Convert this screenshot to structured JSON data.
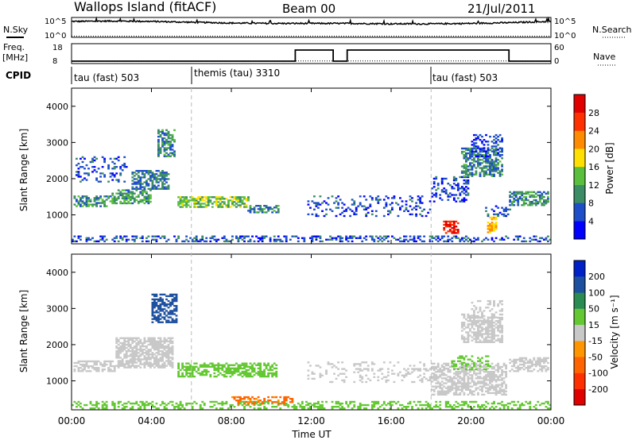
{
  "header": {
    "site": "Wallops Island (fitACF)",
    "beam": "Beam 00",
    "date": "21/Jul/2011"
  },
  "colors": {
    "background": "#ffffff",
    "axis": "#000000",
    "scatter_gray": "#c8c8c8"
  },
  "chart_data": [
    {
      "type": "line",
      "name": "noise-panel",
      "left_label": "N.Sky",
      "right_label": "N.Search",
      "left_ticks": [
        "10^5",
        "10^0"
      ],
      "right_ticks": [
        "10^5",
        "10^0"
      ],
      "ylim_exp": [
        0,
        5
      ],
      "x": [
        0,
        2,
        4,
        6,
        8,
        10,
        12,
        14,
        16,
        18,
        20,
        22,
        24
      ],
      "sky_exp": [
        4.0,
        4.1,
        4.0,
        3.8,
        3.6,
        3.5,
        3.5,
        3.5,
        3.4,
        3.4,
        3.5,
        3.7,
        4.0
      ],
      "search_exp": [
        0.3,
        0.3,
        0.3,
        0.3,
        0.3,
        0.3,
        0.3,
        0.3,
        0.3,
        0.3,
        0.3,
        0.3,
        0.3
      ]
    },
    {
      "type": "line",
      "name": "frequency-panel",
      "left_label": "Freq.",
      "left_unit": "[MHz]",
      "right_label": "Nave",
      "left_ticks": [
        "18",
        "8"
      ],
      "right_ticks": [
        "60",
        "0"
      ],
      "freq_steps": [
        [
          0,
          8
        ],
        [
          11.2,
          8
        ],
        [
          11.2,
          15
        ],
        [
          13.1,
          15
        ],
        [
          13.1,
          8
        ],
        [
          13.8,
          8
        ],
        [
          13.8,
          15
        ],
        [
          21.9,
          15
        ],
        [
          21.9,
          8
        ],
        [
          24,
          8
        ]
      ],
      "nave_level": 8
    },
    {
      "type": "table",
      "name": "cpid-bar",
      "label": "CPID",
      "segments": [
        {
          "label": "tau (fast) 503",
          "start": 0
        },
        {
          "label": "themis (tau) 3310",
          "start": 6
        },
        {
          "label": "tau (fast) 503",
          "start": 18
        }
      ]
    },
    {
      "type": "heatmap",
      "name": "power-panel",
      "ylabel": "Slant Range [km]",
      "yticks": [
        1000,
        2000,
        3000,
        4000
      ],
      "ylim": [
        200,
        4500
      ],
      "xlim": [
        0,
        24
      ],
      "colorbar_label": "Power [dB]",
      "colorbar_ticks": [
        "4",
        "8",
        "12",
        "16",
        "20",
        "24",
        "28"
      ],
      "colorbar_colors": [
        "#0000ff",
        "#1e4fc8",
        "#3c8c64",
        "#5abf3c",
        "#ffe000",
        "#ff8c00",
        "#ff3000",
        "#e00000"
      ],
      "mode": "power",
      "regions": [
        {
          "t0": 0.1,
          "t1": 2.0,
          "r0": 1220,
          "r1": 1500,
          "v": 10
        },
        {
          "t0": 2.0,
          "t1": 4.0,
          "r0": 1300,
          "r1": 1700,
          "v": 11
        },
        {
          "t0": 3.0,
          "t1": 4.8,
          "r0": 1700,
          "r1": 2200,
          "v": 8
        },
        {
          "t0": 4.3,
          "t1": 5.1,
          "r0": 2600,
          "r1": 3350,
          "v": 9
        },
        {
          "t0": 0.2,
          "t1": 2.8,
          "r0": 1900,
          "r1": 2600,
          "v": 5,
          "density": 0.25
        },
        {
          "t0": 5.3,
          "t1": 8.8,
          "r0": 1200,
          "r1": 1500,
          "v": 14
        },
        {
          "t0": 8.8,
          "t1": 10.3,
          "r0": 1050,
          "r1": 1250,
          "v": 9
        },
        {
          "t0": 0.0,
          "t1": 24.0,
          "r0": 250,
          "r1": 400,
          "v": 6,
          "density": 0.35
        },
        {
          "t0": 11.8,
          "t1": 18.0,
          "r0": 950,
          "r1": 1500,
          "v": 5,
          "density": 0.18
        },
        {
          "t0": 18.0,
          "t1": 19.9,
          "r0": 1350,
          "r1": 2050,
          "v": 5,
          "density": 0.3
        },
        {
          "t0": 18.6,
          "t1": 19.4,
          "r0": 480,
          "r1": 800,
          "v": 28
        },
        {
          "t0": 19.5,
          "t1": 21.6,
          "r0": 2050,
          "r1": 2850,
          "v": 9
        },
        {
          "t0": 20.0,
          "t1": 21.6,
          "r0": 2600,
          "r1": 3200,
          "v": 5,
          "density": 0.3
        },
        {
          "t0": 20.8,
          "t1": 21.3,
          "r0": 500,
          "r1": 950,
          "v": 20
        },
        {
          "t0": 21.9,
          "t1": 23.9,
          "r0": 1250,
          "r1": 1650,
          "v": 10
        },
        {
          "t0": 20.5,
          "t1": 22.0,
          "r0": 950,
          "r1": 1250,
          "v": 6,
          "density": 0.3
        }
      ]
    },
    {
      "type": "heatmap",
      "name": "velocity-panel",
      "ylabel": "Slant Range [km]",
      "xlabel": "Time UT",
      "xticks": [
        "00:00",
        "04:00",
        "08:00",
        "12:00",
        "16:00",
        "20:00",
        "00:00"
      ],
      "xtick_hours": [
        0,
        4,
        8,
        12,
        16,
        20,
        24
      ],
      "yticks": [
        1000,
        2000,
        3000,
        4000
      ],
      "ylim": [
        200,
        4500
      ],
      "xlim": [
        0,
        24
      ],
      "colorbar_label": "Velocity [m s⁻¹]",
      "colorbar_ticks": [
        "200",
        "100",
        "50",
        "15",
        "-15",
        "-50",
        "-100",
        "-200"
      ],
      "colorbar_colors": [
        "#0020c8",
        "#1e50a0",
        "#2a8c50",
        "#64c832",
        "#c8c8c8",
        "#ff9600",
        "#ff6400",
        "#ff3000",
        "#e00000"
      ],
      "mode": "velocity",
      "regions": [
        {
          "t0": 0.1,
          "t1": 2.2,
          "r0": 1250,
          "r1": 1550,
          "v": 0
        },
        {
          "t0": 2.2,
          "t1": 5.0,
          "r0": 1350,
          "r1": 2200,
          "v": 0,
          "density": 0.7
        },
        {
          "t0": 4.0,
          "t1": 5.2,
          "r0": 2600,
          "r1": 3400,
          "v": 180
        },
        {
          "t0": 5.3,
          "t1": 10.2,
          "r0": 1100,
          "r1": 1500,
          "v": 35
        },
        {
          "t0": 0.0,
          "t1": 24.0,
          "r0": 220,
          "r1": 420,
          "v": 30,
          "density": 0.35
        },
        {
          "t0": 8.0,
          "t1": 11.0,
          "r0": 350,
          "r1": 550,
          "v": -60,
          "density": 0.4
        },
        {
          "t0": 11.8,
          "t1": 18.0,
          "r0": 950,
          "r1": 1500,
          "v": 0,
          "density": 0.2
        },
        {
          "t0": 18.0,
          "t1": 21.8,
          "r0": 600,
          "r1": 1500,
          "v": 0,
          "density": 0.6
        },
        {
          "t0": 19.5,
          "t1": 21.6,
          "r0": 2050,
          "r1": 2850,
          "v": 0
        },
        {
          "t0": 20.0,
          "t1": 21.6,
          "r0": 2600,
          "r1": 3200,
          "v": 0,
          "density": 0.3
        },
        {
          "t0": 21.9,
          "t1": 23.9,
          "r0": 1250,
          "r1": 1650,
          "v": 0
        },
        {
          "t0": 19.0,
          "t1": 21.0,
          "r0": 1300,
          "r1": 1700,
          "v": 30,
          "density": 0.3
        }
      ]
    }
  ]
}
